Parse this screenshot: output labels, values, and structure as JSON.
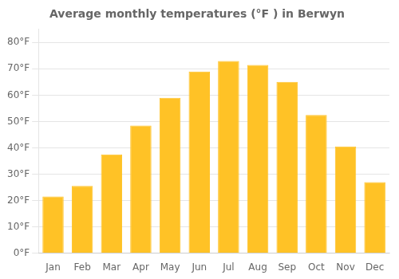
{
  "chart_data": {
    "type": "bar",
    "title": "Average monthly temperatures (°F ) in Berwyn",
    "categories": [
      "Jan",
      "Feb",
      "Mar",
      "Apr",
      "May",
      "Jun",
      "Jul",
      "Aug",
      "Sep",
      "Oct",
      "Nov",
      "Dec"
    ],
    "values": [
      21.5,
      25.5,
      37.5,
      48.5,
      59,
      69,
      73,
      71.5,
      65,
      52.5,
      40.5,
      27
    ],
    "color": "#FFC226",
    "ylim": [
      0,
      85
    ],
    "yticks": [
      {
        "value": 0,
        "label": "0°F"
      },
      {
        "value": 10,
        "label": "10°F"
      },
      {
        "value": 20,
        "label": "20°F"
      },
      {
        "value": 30,
        "label": "30°F"
      },
      {
        "value": 40,
        "label": "40°F"
      },
      {
        "value": 50,
        "label": "50°F"
      },
      {
        "value": 60,
        "label": "60°F"
      },
      {
        "value": 70,
        "label": "70°F"
      },
      {
        "value": 80,
        "label": "80°F"
      }
    ],
    "grid": true
  }
}
